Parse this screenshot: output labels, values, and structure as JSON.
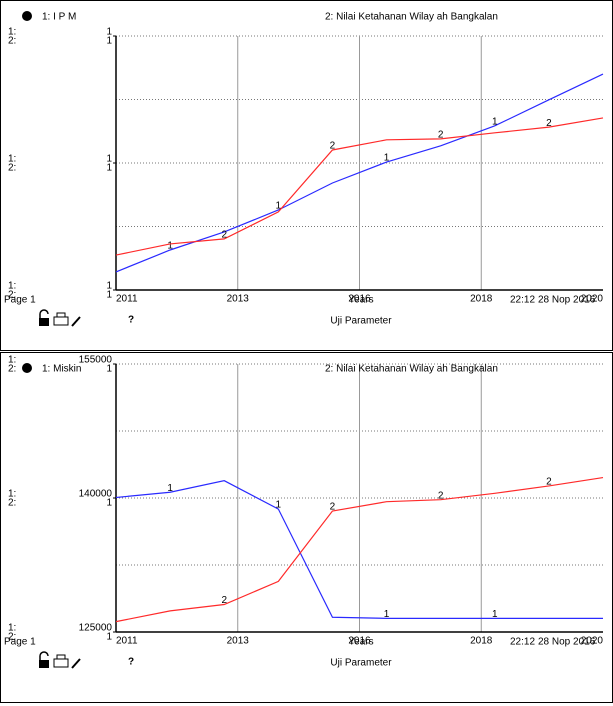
{
  "chart_data": [
    {
      "type": "line",
      "x": [
        2011,
        2012,
        2013,
        2014,
        2015,
        2016,
        2017,
        2018,
        2019,
        2020
      ],
      "xlim": [
        2011,
        2020
      ],
      "xticks": [
        2011,
        {
          "value": 2013.25,
          "label": "2013"
        },
        {
          "value": 2015.5,
          "label": "2016"
        },
        {
          "value": 2017.75,
          "label": "2018"
        },
        2020
      ],
      "ylim": [
        0.6,
        1.4
      ],
      "yticks": [
        {
          "value": 0.6,
          "label": "1"
        },
        1,
        {
          "value": 1.4,
          "label": "1"
        }
      ],
      "y2lim": [
        0.6,
        1.4
      ],
      "y2ticks": [
        {
          "value": 0.6,
          "label": "1"
        },
        1,
        {
          "value": 1.4,
          "label": "1"
        }
      ],
      "series": [
        {
          "name": "1: I P M",
          "key": "1:",
          "marker": "1",
          "color": "#2a2aff",
          "values": [
            0.657,
            0.726,
            0.783,
            0.852,
            0.937,
            1.003,
            1.054,
            1.117,
            1.199,
            1.28
          ]
        },
        {
          "name": "2: Nilai Ketahanan Wilay ah Bangkalan",
          "key": "2:",
          "marker": "2",
          "color": "#ff2a2a",
          "axis": "y2",
          "values": [
            0.71,
            0.745,
            0.761,
            0.846,
            1.041,
            1.073,
            1.076,
            1.095,
            1.113,
            1.142
          ]
        }
      ],
      "x_label": "Years",
      "subtitle": "Uji Parameter",
      "page": "Page 1",
      "time": "22:12",
      "date": "28 Nop 2016",
      "help": "?"
    },
    {
      "type": "line",
      "x": [
        2011,
        2012,
        2013,
        2014,
        2015,
        2016,
        2017,
        2018,
        2019,
        2020
      ],
      "xlim": [
        2011,
        2020
      ],
      "xticks": [
        2011,
        {
          "value": 2013.25,
          "label": "2013"
        },
        {
          "value": 2015.5,
          "label": "2016"
        },
        {
          "value": 2017.75,
          "label": "2018"
        },
        2020
      ],
      "ylim": [
        125000,
        155000
      ],
      "yticks": [
        125000,
        140000,
        155000
      ],
      "y2lim": [
        0.6,
        1.4
      ],
      "y2ticks": [
        {
          "value": 0.6,
          "label": "1"
        },
        1,
        {
          "value": 1.4,
          "label": "1"
        }
      ],
      "series": [
        {
          "name": "1: Miskin",
          "key": "1:",
          "marker": "1",
          "color": "#2a2aff",
          "values": [
            140059,
            140647,
            141941,
            138765,
            126647,
            126529,
            126529,
            126529,
            126529,
            126529
          ]
        },
        {
          "name": "2: Nilai Ketahanan Wilay ah Bangkalan",
          "key": "2:",
          "marker": "2",
          "color": "#ff2a2a",
          "axis": "y2",
          "values": [
            0.631,
            0.663,
            0.682,
            0.751,
            0.961,
            0.989,
            0.995,
            1.014,
            1.036,
            1.061
          ]
        }
      ],
      "x_label": "Years",
      "subtitle": "Uji Parameter",
      "page": "Page 1",
      "time": "22:12",
      "date": "28 Nop 2016",
      "help": "?"
    }
  ]
}
